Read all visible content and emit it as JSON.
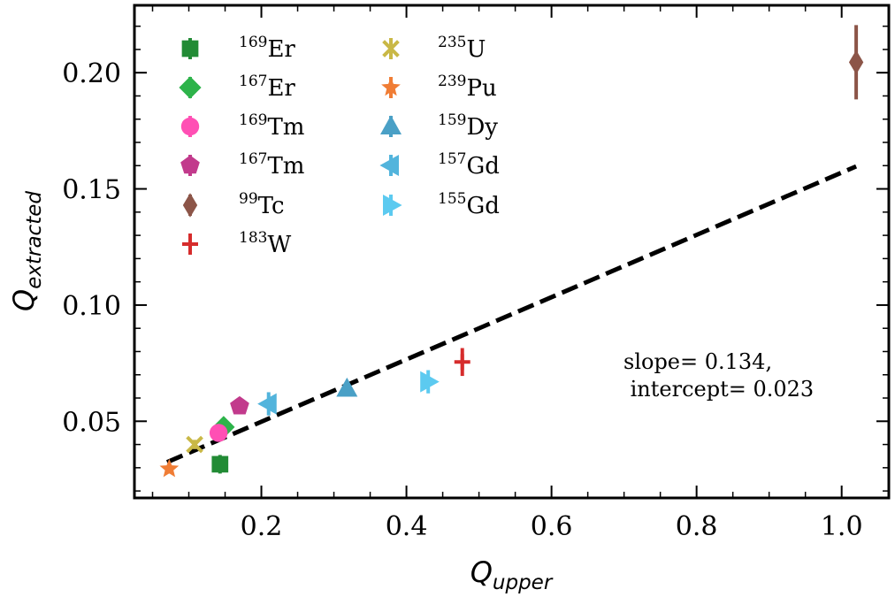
{
  "chart_data": {
    "type": "scatter",
    "xlabel": "Q",
    "xlabel_sub": "upper",
    "ylabel": "Q",
    "ylabel_sub": "extracted",
    "xlim": [
      0.025,
      1.065
    ],
    "ylim": [
      0.017,
      0.229
    ],
    "xticks": [
      0.2,
      0.4,
      0.6,
      0.8,
      1.0
    ],
    "xtick_labels": [
      "0.2",
      "0.4",
      "0.6",
      "0.8",
      "1.0"
    ],
    "yticks": [
      0.05,
      0.1,
      0.15,
      0.2
    ],
    "ytick_labels": [
      "0.05",
      "0.10",
      "0.15",
      "0.20"
    ],
    "grid": false,
    "legend_position": "top-left",
    "legend_columns": 2,
    "series": [
      {
        "name": "Er",
        "mass": "169",
        "marker": "square",
        "color": "#228b35",
        "x": 0.143,
        "y": 0.0315,
        "yerr": 0.004
      },
      {
        "name": "Er",
        "mass": "167",
        "marker": "diamond",
        "color": "#2db34a",
        "x": 0.148,
        "y": 0.0475,
        "yerr": 0.003
      },
      {
        "name": "Tm",
        "mass": "169",
        "marker": "circle",
        "color": "#ff4fb4",
        "x": 0.141,
        "y": 0.045,
        "yerr": 0.003
      },
      {
        "name": "Tm",
        "mass": "167",
        "marker": "pentagon",
        "color": "#c23a8c",
        "x": 0.17,
        "y": 0.0565,
        "yerr": 0.003
      },
      {
        "name": "Tc",
        "mass": "99",
        "marker": "thin-diamond",
        "color": "#8c5548",
        "x": 1.02,
        "y": 0.2045,
        "yerr": 0.016
      },
      {
        "name": "W",
        "mass": "183",
        "marker": "plus",
        "color": "#d62c2c",
        "x": 0.477,
        "y": 0.0755,
        "yerr": 0.006
      },
      {
        "name": "U",
        "mass": "235",
        "marker": "x",
        "color": "#c9b846",
        "x": 0.108,
        "y": 0.04,
        "yerr": 0.002
      },
      {
        "name": "Pu",
        "mass": "239",
        "marker": "star",
        "color": "#f07d35",
        "x": 0.073,
        "y": 0.0295,
        "yerr": 0.002
      },
      {
        "name": "Dy",
        "mass": "159",
        "marker": "triangle-up",
        "color": "#4aa0c6",
        "x": 0.318,
        "y": 0.064,
        "yerr": 0.003
      },
      {
        "name": "Gd",
        "mass": "157",
        "marker": "triangle-left",
        "color": "#52b4dc",
        "x": 0.21,
        "y": 0.0575,
        "yerr": 0.005
      },
      {
        "name": "Gd",
        "mass": "155",
        "marker": "triangle-right",
        "color": "#5ccaf0",
        "x": 0.43,
        "y": 0.067,
        "yerr": 0.005
      }
    ],
    "fit_line": {
      "slope": 0.134,
      "intercept": 0.023,
      "x_range": [
        0.07,
        1.02
      ],
      "style": "dashed",
      "color": "#000000"
    },
    "annotation": {
      "line1": "slope= 0.134,",
      "line2": " intercept= 0.023"
    }
  }
}
